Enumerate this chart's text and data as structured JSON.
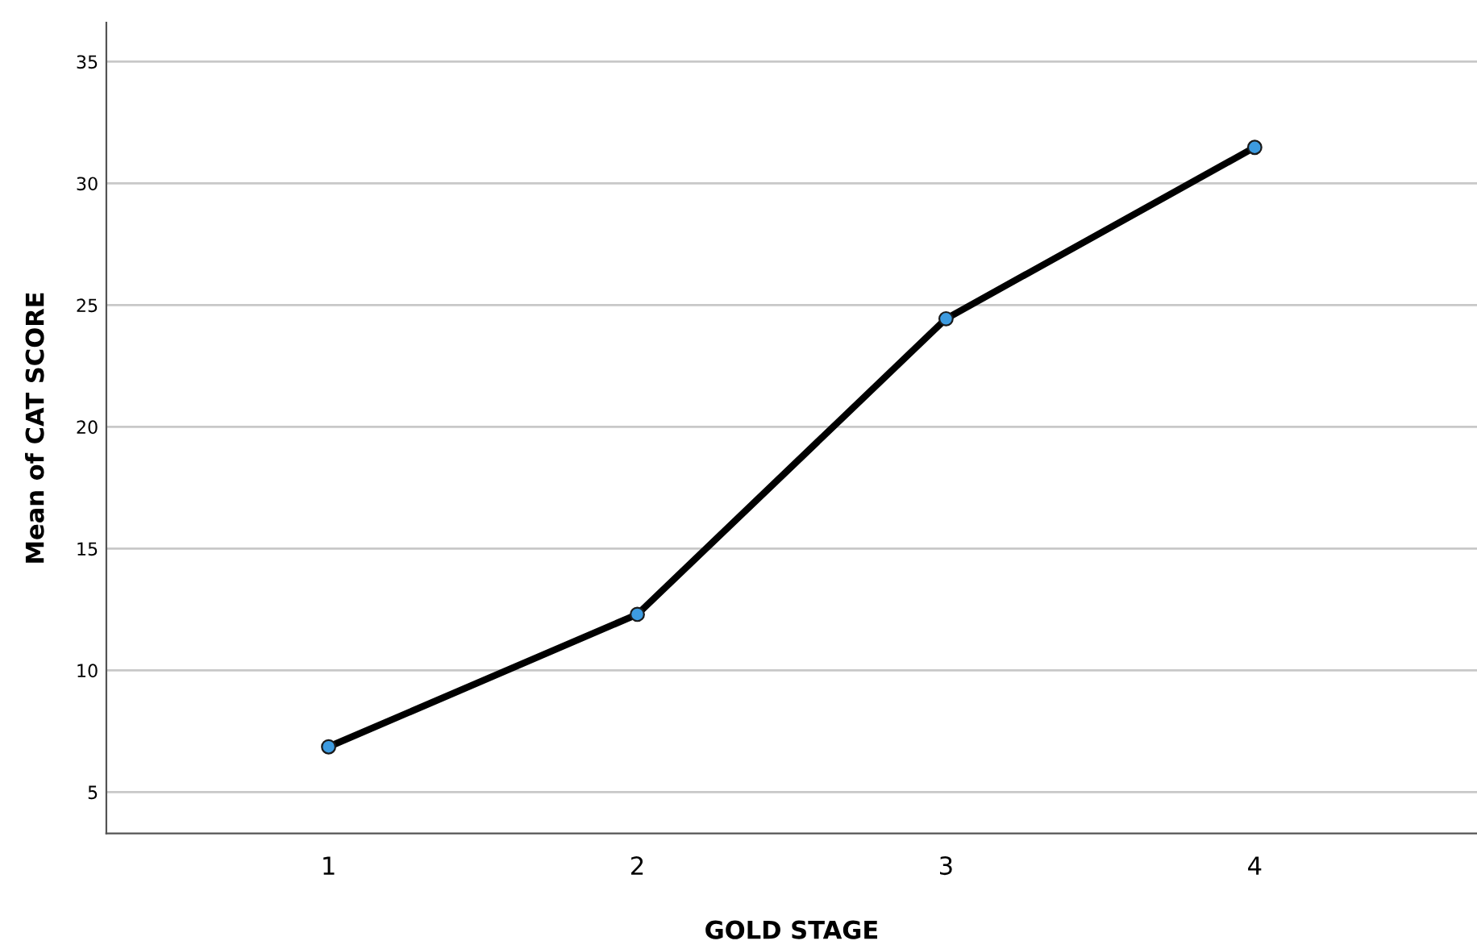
{
  "chart_data": {
    "type": "line",
    "xlabel": "GOLD STAGE",
    "ylabel": "Mean of CAT SCORE",
    "categories": [
      "1",
      "2",
      "3",
      "4"
    ],
    "series": [
      {
        "color": "#000000",
        "values": [
          6.86,
          12.3,
          24.44,
          31.48
        ]
      }
    ],
    "marker": "circle",
    "line_style": "solid",
    "ylim": [
      3.3,
      36.6
    ],
    "yticks": [
      5,
      10,
      15,
      20,
      25,
      30,
      35
    ],
    "grid": "y"
  }
}
